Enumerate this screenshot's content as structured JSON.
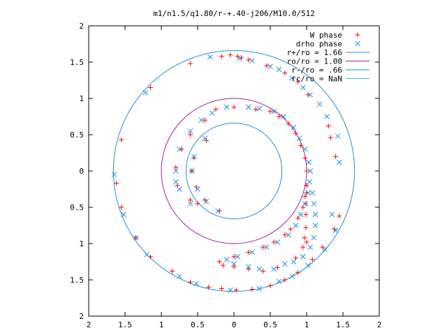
{
  "chart_data": {
    "type": "scatter",
    "title": "m1/n1.5/q1.80/r-+.40-j206/M10.0/512",
    "xlim": [
      -2,
      2
    ],
    "ylim": [
      -2,
      2
    ],
    "x_ticks": [
      -2,
      -1.5,
      -1,
      -0.5,
      0,
      0.5,
      1,
      1.5,
      2
    ],
    "x_tick_labels": [
      "2",
      "1.5",
      "1",
      "0.5",
      "0",
      "0.5",
      "1",
      "1.5",
      "2"
    ],
    "y_ticks": [
      2,
      1.5,
      1,
      0.5,
      0,
      -0.5,
      -1,
      -1.5,
      -2
    ],
    "y_tick_labels": [
      "2",
      "1.5",
      "1",
      "0.5",
      "0",
      "0.5",
      "1",
      "1.5",
      "2"
    ],
    "grid": false,
    "legend_position": "top-right",
    "series": [
      {
        "name": "W phase",
        "kind": "points",
        "marker": "plus",
        "color": "#ff0000",
        "points": [
          [
            -0.6,
            1.48
          ],
          [
            -0.17,
            1.58
          ],
          [
            -0.05,
            1.6
          ],
          [
            0.05,
            1.58
          ],
          [
            0.1,
            1.56
          ],
          [
            0.2,
            1.53
          ],
          [
            0.45,
            1.45
          ],
          [
            0.7,
            1.35
          ],
          [
            0.88,
            1.23
          ],
          [
            1.02,
            1.05
          ],
          [
            1.3,
            0.62
          ],
          [
            1.33,
            0.46
          ],
          [
            1.4,
            0.2
          ],
          [
            -1.15,
            1.15
          ],
          [
            -1.55,
            0.43
          ],
          [
            -1.62,
            -0.17
          ],
          [
            -1.55,
            -0.5
          ],
          [
            -1.35,
            -0.92
          ],
          [
            -1.15,
            -1.18
          ],
          [
            -0.85,
            -1.38
          ],
          [
            -0.6,
            -1.53
          ],
          [
            -0.35,
            -1.6
          ],
          [
            -0.17,
            -1.62
          ],
          [
            0.03,
            -1.64
          ],
          [
            0.25,
            -1.63
          ],
          [
            0.5,
            -1.58
          ],
          [
            0.7,
            -1.5
          ],
          [
            0.88,
            -1.4
          ],
          [
            1.08,
            -1.22
          ],
          [
            1.22,
            -1.05
          ],
          [
            1.38,
            -0.8
          ],
          [
            1.45,
            -0.62
          ],
          [
            -0.38,
            0.42
          ],
          [
            -0.55,
            0.18
          ],
          [
            -0.58,
            0.0
          ],
          [
            -0.52,
            -0.22
          ],
          [
            -0.4,
            -0.4
          ],
          [
            -0.2,
            -0.55
          ],
          [
            -0.25,
            0.85
          ],
          [
            -0.4,
            0.7
          ],
          [
            -0.6,
            0.5
          ],
          [
            -0.72,
            0.3
          ],
          [
            -0.8,
            0.05
          ],
          [
            -0.78,
            -0.2
          ],
          [
            -0.6,
            -0.4
          ],
          [
            -0.5,
            -0.45
          ],
          [
            0.0,
            0.88
          ],
          [
            0.3,
            0.85
          ],
          [
            0.5,
            0.82
          ],
          [
            0.62,
            0.75
          ],
          [
            0.75,
            0.65
          ],
          [
            0.85,
            0.52
          ],
          [
            0.92,
            0.35
          ],
          [
            0.98,
            0.18
          ],
          [
            1.0,
            0.0
          ],
          [
            1.0,
            -0.2
          ],
          [
            0.98,
            -0.35
          ],
          [
            0.95,
            -0.5
          ],
          [
            0.88,
            -0.65
          ],
          [
            0.78,
            -0.8
          ],
          [
            0.7,
            -0.88
          ],
          [
            0.55,
            -0.98
          ],
          [
            0.4,
            -1.05
          ],
          [
            0.2,
            -1.12
          ],
          [
            0.0,
            -1.18
          ],
          [
            -0.2,
            -1.25
          ],
          [
            -0.15,
            -1.3
          ],
          [
            0.0,
            -1.32
          ],
          [
            0.2,
            -1.35
          ],
          [
            0.4,
            -1.38
          ],
          [
            0.6,
            -1.33
          ],
          [
            0.85,
            -1.2
          ],
          [
            1.0,
            -0.98
          ],
          [
            0.95,
            -1.05
          ],
          [
            0.97,
            -0.92
          ],
          [
            0.99,
            -0.78
          ],
          [
            0.99,
            -0.6
          ],
          [
            0.99,
            -0.45
          ],
          [
            1.0,
            -0.3
          ],
          [
            1.0,
            -0.2
          ]
        ]
      },
      {
        "name": "drho phase",
        "kind": "points",
        "marker": "cross",
        "color": "#1f8fdd",
        "points": [
          [
            -0.33,
            1.57
          ],
          [
            0.08,
            1.55
          ],
          [
            0.25,
            1.52
          ],
          [
            0.5,
            1.44
          ],
          [
            0.62,
            1.4
          ],
          [
            0.8,
            1.28
          ],
          [
            0.95,
            1.15
          ],
          [
            1.05,
            1.05
          ],
          [
            1.18,
            0.92
          ],
          [
            1.28,
            0.75
          ],
          [
            1.43,
            0.48
          ],
          [
            1.45,
            0.12
          ],
          [
            -1.22,
            1.08
          ],
          [
            -1.65,
            -0.05
          ],
          [
            -1.52,
            -0.6
          ],
          [
            -1.35,
            -0.92
          ],
          [
            -1.2,
            -1.15
          ],
          [
            -0.75,
            -1.45
          ],
          [
            -0.52,
            -1.55
          ],
          [
            -0.05,
            -1.64
          ],
          [
            0.35,
            -1.62
          ],
          [
            0.62,
            -1.52
          ],
          [
            0.8,
            -1.45
          ],
          [
            1.02,
            -1.3
          ],
          [
            1.25,
            -1.08
          ],
          [
            1.4,
            -0.82
          ],
          [
            1.35,
            -0.6
          ],
          [
            -0.4,
            0.45
          ],
          [
            -0.55,
            0.2
          ],
          [
            -0.58,
            0.0
          ],
          [
            -0.5,
            -0.25
          ],
          [
            -0.38,
            -0.42
          ],
          [
            -0.22,
            -0.55
          ],
          [
            -0.6,
            0.55
          ],
          [
            -0.45,
            0.7
          ],
          [
            -0.3,
            0.8
          ],
          [
            -0.75,
            0.3
          ],
          [
            -0.8,
            0.0
          ],
          [
            -0.75,
            -0.25
          ],
          [
            -0.6,
            -0.45
          ],
          [
            -0.8,
            -0.15
          ],
          [
            -0.1,
            0.88
          ],
          [
            0.2,
            0.88
          ],
          [
            0.35,
            0.86
          ],
          [
            0.55,
            0.82
          ],
          [
            0.68,
            0.75
          ],
          [
            0.82,
            0.6
          ],
          [
            0.9,
            0.45
          ],
          [
            0.98,
            0.3
          ],
          [
            1.03,
            0.12
          ],
          [
            1.05,
            0.0
          ],
          [
            1.04,
            -0.15
          ],
          [
            1.02,
            -0.3
          ],
          [
            0.98,
            -0.45
          ],
          [
            0.92,
            -0.6
          ],
          [
            0.85,
            -0.75
          ],
          [
            0.75,
            -0.88
          ],
          [
            0.6,
            -0.98
          ],
          [
            0.45,
            -1.05
          ],
          [
            0.25,
            -1.12
          ],
          [
            0.05,
            -1.18
          ],
          [
            -0.1,
            -1.22
          ],
          [
            0.0,
            -1.28
          ],
          [
            0.2,
            -1.32
          ],
          [
            0.35,
            -1.35
          ],
          [
            0.55,
            -1.35
          ],
          [
            0.7,
            -1.28
          ],
          [
            0.82,
            -1.25
          ],
          [
            0.95,
            -1.18
          ],
          [
            1.05,
            -1.05
          ],
          [
            1.1,
            -0.92
          ],
          [
            1.12,
            -0.75
          ],
          [
            1.12,
            -0.6
          ],
          [
            1.1,
            -0.45
          ],
          [
            1.08,
            -0.3
          ]
        ]
      },
      {
        "name": "r+/ro = 1.66",
        "kind": "circle",
        "radius": 1.66,
        "color": "#1f8fdd"
      },
      {
        "name": "ro/ro = 1.00",
        "kind": "circle",
        "radius": 1.0,
        "color": "#a020a0"
      },
      {
        "name": "r-/ro = .66",
        "kind": "circle",
        "radius": 0.66,
        "color": "#1f8fdd"
      },
      {
        "name": "rc/ro = NaN",
        "kind": "circle",
        "radius": null,
        "color": "#40c0c0"
      }
    ]
  }
}
